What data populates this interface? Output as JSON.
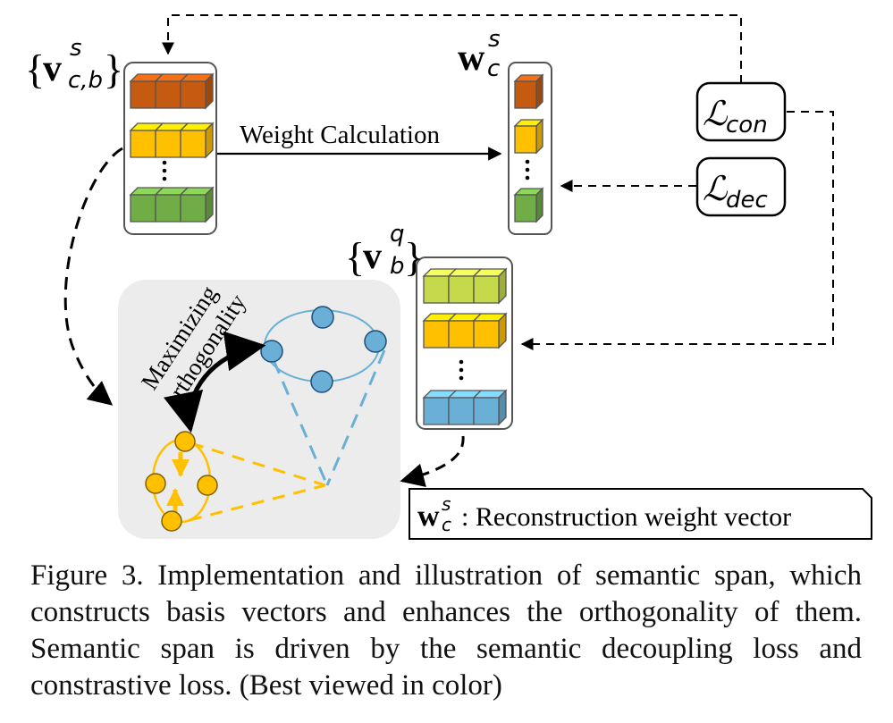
{
  "figure": {
    "support_label": {
      "vec": "v",
      "sup": "s",
      "sub": "c,b"
    },
    "weight_label": {
      "vec": "w",
      "sup": "s",
      "sub": "c"
    },
    "query_label": {
      "vec": "v",
      "sup": "q",
      "sub": "b"
    },
    "loss_con": {
      "symbol": "ℒ",
      "sub": "con"
    },
    "loss_dec": {
      "symbol": "ℒ",
      "sub": "dec"
    },
    "arrow_weight_label": "Weight Calculation",
    "maximizing_label_line1": "Maximizing",
    "maximizing_label_line2": "orthogonality",
    "legend": {
      "vec": "w",
      "sup": "s",
      "sub": "c",
      "text": ": Reconstruction weight vector"
    },
    "colors": {
      "support_row_1": "#c55a11",
      "support_row_2": "#ffc000",
      "support_row_3": "#70ad47",
      "query_row_1": "#c5d94a",
      "query_row_2": "#ffc000",
      "query_row_3": "#6ab0d6",
      "basis_yellow": "#ffc000",
      "basis_blue": "#6ab0d6",
      "panel_gray": "#ececec"
    }
  },
  "caption": "Figure 3. Implementation and illustration of semantic span, which constructs basis vectors and enhances the orthogonality of them. Semantic span is driven by the semantic decoupling loss and constrastive loss. (Best viewed in color)"
}
